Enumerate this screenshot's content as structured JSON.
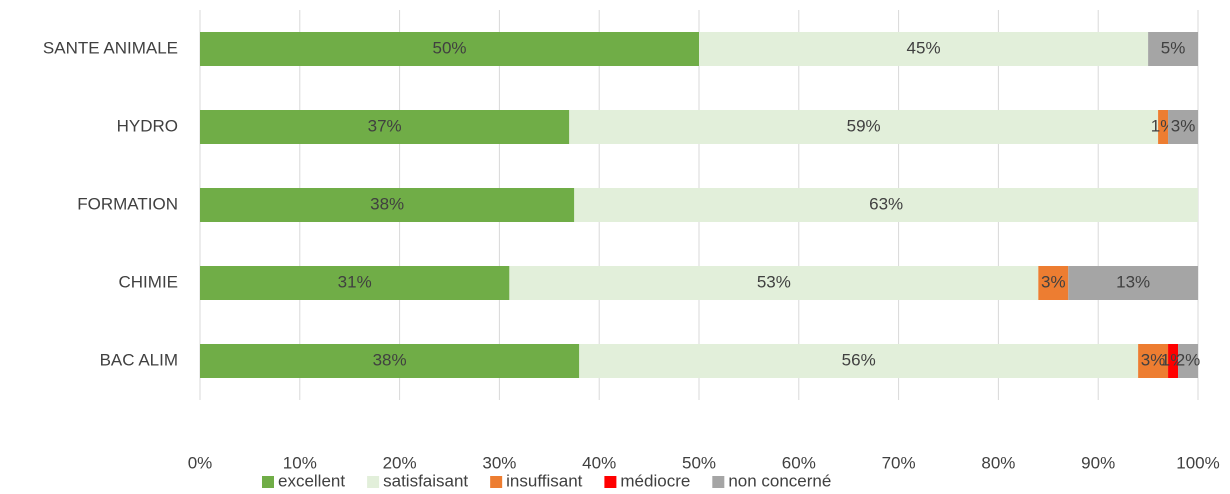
{
  "chart_data": {
    "type": "stacked_barh",
    "categories": [
      "SANTE ANIMALE",
      "HYDRO",
      "FORMATION",
      "CHIMIE",
      "BAC ALIM"
    ],
    "series": [
      {
        "name": "excellent",
        "color": "#70ad47",
        "values": [
          50,
          37,
          37.5,
          31,
          38
        ],
        "value_labels": [
          "50%",
          "37%",
          "38%",
          "31%",
          "38%"
        ]
      },
      {
        "name": "satisfaisant",
        "color": "#e2efda",
        "values": [
          45,
          59,
          62.5,
          53,
          56
        ],
        "value_labels": [
          "45%",
          "59%",
          "63%",
          "53%",
          "56%"
        ]
      },
      {
        "name": "insuffisant",
        "color": "#ed7d31",
        "values": [
          null,
          1,
          null,
          3,
          3
        ],
        "value_labels": [
          null,
          "1%",
          null,
          "3%",
          "3%"
        ]
      },
      {
        "name": "médiocre",
        "color": "#ff0000",
        "values": [
          null,
          null,
          null,
          null,
          1
        ],
        "value_labels": [
          null,
          null,
          null,
          null,
          "1%"
        ]
      },
      {
        "name": "non concerné",
        "color": "#a5a5a5",
        "values": [
          5,
          3,
          null,
          13,
          2
        ],
        "value_labels": [
          "5%",
          "3%",
          null,
          "13%",
          "2%"
        ]
      }
    ],
    "xlim": [
      0,
      100
    ],
    "xticks": [
      {
        "value": 0,
        "label": "0%"
      },
      {
        "value": 10,
        "label": "10%"
      },
      {
        "value": 20,
        "label": "20%"
      },
      {
        "value": 30,
        "label": "30%"
      },
      {
        "value": 40,
        "label": "40%"
      },
      {
        "value": 50,
        "label": "50%"
      },
      {
        "value": 60,
        "label": "60%"
      },
      {
        "value": 70,
        "label": "70%"
      },
      {
        "value": 80,
        "label": "80%"
      },
      {
        "value": 90,
        "label": "90%"
      },
      {
        "value": 100,
        "label": "100%"
      }
    ],
    "grid": true,
    "legend": "bottom"
  }
}
